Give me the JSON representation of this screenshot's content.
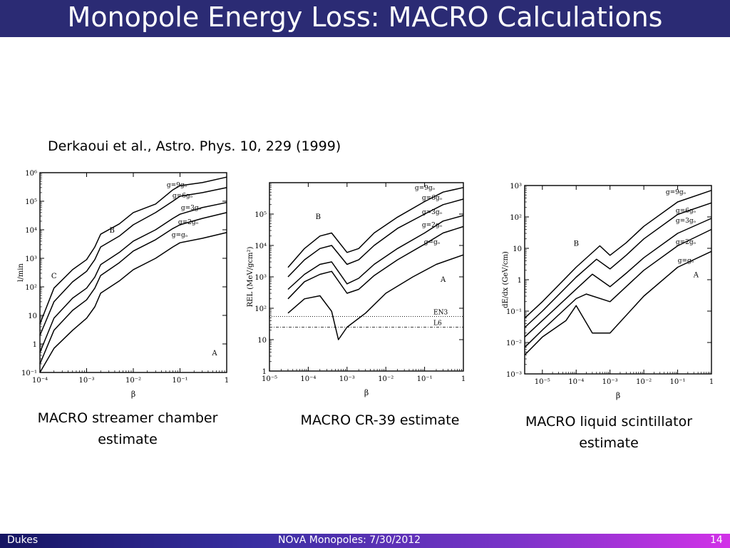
{
  "slide": {
    "title": "Monopole Energy Loss:  MACRO Calculations",
    "reference": "Derkaoui et al., Astro. Phys. 10, 229 (1999)"
  },
  "footer": {
    "left": "Dukes",
    "center": "NOvA Monopoles:  7/30/2012",
    "right": "14"
  },
  "captions": [
    "MACRO streamer chamber estimate",
    "MACRO CR-39 estimate",
    "MACRO liquid scintillator estimate"
  ],
  "colors": {
    "title_bar": "#2b2b74",
    "footer_start": "#151562",
    "footer_end": "#d232e8"
  },
  "chart_data": [
    {
      "type": "line",
      "xscale": "log",
      "yscale": "log",
      "xlim": [
        0.0001,
        1
      ],
      "ylim": [
        0.1,
        1000000
      ],
      "xlabel": "β",
      "ylabel": "l/min",
      "xticks": [
        "10⁻⁴",
        "10⁻³",
        "10⁻²",
        "10⁻¹",
        "1"
      ],
      "yticks": [
        "10⁻¹",
        "1",
        "10",
        "10²",
        "10³",
        "10⁴",
        "10⁵",
        "10⁶"
      ],
      "annotations": [
        "A",
        "B",
        "C"
      ],
      "series": [
        {
          "name": "g=9gₒ",
          "style": "solid",
          "x": [
            0.0001,
            0.0002,
            0.0005,
            0.001,
            0.0015,
            0.002,
            0.005,
            0.01,
            0.03,
            0.07,
            0.1,
            0.3,
            1
          ],
          "y": [
            5,
            90,
            400,
            900,
            2500,
            7000,
            16000,
            40000,
            80000,
            250000,
            350000,
            450000,
            700000
          ]
        },
        {
          "name": "g=6gₒ",
          "style": "solid",
          "x": [
            0.0001,
            0.0002,
            0.0005,
            0.001,
            0.0015,
            0.002,
            0.005,
            0.01,
            0.03,
            0.07,
            0.1,
            0.3,
            1
          ],
          "y": [
            2,
            30,
            150,
            350,
            900,
            2500,
            6000,
            15000,
            40000,
            100000,
            150000,
            200000,
            300000
          ]
        },
        {
          "name": "g=3gₒ",
          "style": "solid",
          "x": [
            0.0001,
            0.0002,
            0.0005,
            0.001,
            0.0015,
            0.002,
            0.005,
            0.01,
            0.03,
            0.07,
            0.1,
            0.3,
            1
          ],
          "y": [
            0.5,
            8,
            40,
            90,
            220,
            600,
            1600,
            4000,
            10000,
            25000,
            35000,
            60000,
            90000
          ]
        },
        {
          "name": "g=2gₒ",
          "style": "solid",
          "x": [
            0.0001,
            0.0002,
            0.0005,
            0.001,
            0.0015,
            0.002,
            0.005,
            0.01,
            0.03,
            0.07,
            0.1,
            0.3,
            1
          ],
          "y": [
            0.2,
            3,
            15,
            35,
            90,
            250,
            700,
            1800,
            4500,
            11000,
            15000,
            25000,
            40000
          ]
        },
        {
          "name": "g=gₒ",
          "style": "solid",
          "x": [
            0.0001,
            0.0002,
            0.0005,
            0.001,
            0.0015,
            0.002,
            0.005,
            0.01,
            0.03,
            0.07,
            0.1,
            0.3,
            1
          ],
          "y": [
            0.1,
            0.7,
            3,
            8,
            20,
            60,
            160,
            400,
            1000,
            2500,
            3500,
            5000,
            8000
          ]
        }
      ]
    },
    {
      "type": "line",
      "xscale": "log",
      "yscale": "log",
      "xlim": [
        1e-05,
        1
      ],
      "ylim": [
        1,
        1000000
      ],
      "xlabel": "β",
      "ylabel": "REL (MeV/gcm²)",
      "xticks": [
        "10⁻⁵",
        "10⁻⁴",
        "10⁻³",
        "10⁻²",
        "10⁻¹",
        "1"
      ],
      "yticks": [
        "1",
        "10",
        "10²",
        "10³",
        "10⁴",
        "10⁵"
      ],
      "annotations": [
        "A",
        "B"
      ],
      "thresholds": [
        {
          "label": "EN3",
          "y": 55
        },
        {
          "label": "L6",
          "y": 25
        }
      ],
      "series": [
        {
          "name": "g=9gₒ",
          "style": "solid",
          "x": [
            3e-05,
            8e-05,
            0.0002,
            0.0004,
            0.001,
            0.002,
            0.005,
            0.02,
            0.1,
            0.3,
            1
          ],
          "y": [
            2000,
            8000,
            20000,
            25000,
            6000,
            8000,
            25000,
            80000,
            250000,
            500000,
            700000
          ]
        },
        {
          "name": "g=6gₒ",
          "style": "solid",
          "x": [
            3e-05,
            8e-05,
            0.0002,
            0.0004,
            0.001,
            0.002,
            0.005,
            0.02,
            0.1,
            0.3,
            1
          ],
          "y": [
            1000,
            3500,
            8000,
            10000,
            2500,
            3500,
            10000,
            35000,
            100000,
            200000,
            300000
          ]
        },
        {
          "name": "g=3gₒ",
          "style": "solid",
          "x": [
            3e-05,
            8e-05,
            0.0002,
            0.0004,
            0.001,
            0.002,
            0.005,
            0.02,
            0.1,
            0.3,
            1
          ],
          "y": [
            400,
            1200,
            2500,
            3000,
            600,
            900,
            2500,
            8000,
            25000,
            60000,
            90000
          ]
        },
        {
          "name": "g=2gₒ",
          "style": "solid",
          "x": [
            3e-05,
            8e-05,
            0.0002,
            0.0004,
            0.001,
            0.002,
            0.005,
            0.02,
            0.1,
            0.3,
            1
          ],
          "y": [
            200,
            700,
            1200,
            1500,
            300,
            400,
            1100,
            3500,
            11000,
            25000,
            40000
          ]
        },
        {
          "name": "g=gₒ",
          "style": "solid",
          "x": [
            3e-05,
            8e-05,
            0.0002,
            0.0004,
            0.0006,
            0.001,
            0.003,
            0.01,
            0.05,
            0.2,
            1
          ],
          "y": [
            70,
            200,
            250,
            80,
            10,
            25,
            70,
            300,
            1000,
            2500,
            5000
          ]
        }
      ]
    },
    {
      "type": "line",
      "xscale": "log",
      "yscale": "log",
      "xlim": [
        3e-06,
        1
      ],
      "ylim": [
        0.001,
        1000
      ],
      "xlabel": "β",
      "ylabel": "dE/dx (GeV/cm)",
      "xticks": [
        "10⁻⁵",
        "10⁻⁴",
        "10⁻³",
        "10⁻²",
        "10⁻¹",
        "1"
      ],
      "yticks": [
        "10⁻³",
        "10⁻²",
        "10⁻¹",
        "1",
        "10",
        "10²",
        "10³"
      ],
      "annotations": [
        "A",
        "B"
      ],
      "series": [
        {
          "name": "g=9gₒ",
          "style": "solid",
          "x": [
            3e-06,
            1e-05,
            0.0001,
            0.0005,
            0.001,
            0.003,
            0.01,
            0.1,
            1
          ],
          "y": [
            0.06,
            0.2,
            2.5,
            12,
            6,
            15,
            50,
            300,
            700
          ]
        },
        {
          "name": "g=6gₒ",
          "style": "solid",
          "x": [
            3e-06,
            1e-05,
            0.0001,
            0.0004,
            0.001,
            0.003,
            0.01,
            0.1,
            1
          ],
          "y": [
            0.03,
            0.1,
            1.2,
            4.5,
            2.2,
            6,
            20,
            120,
            280
          ]
        },
        {
          "name": "g=3gₒ",
          "style": "solid",
          "x": [
            3e-06,
            1e-05,
            0.0001,
            0.0003,
            0.001,
            0.003,
            0.01,
            0.1,
            1
          ],
          "y": [
            0.015,
            0.05,
            0.5,
            1.5,
            0.6,
            1.6,
            5,
            30,
            90
          ]
        },
        {
          "name": "g=2gₒ",
          "style": "solid",
          "x": [
            3e-06,
            1e-05,
            0.0001,
            0.0002,
            0.001,
            0.003,
            0.01,
            0.1,
            1
          ],
          "y": [
            0.007,
            0.025,
            0.25,
            0.35,
            0.2,
            0.6,
            2,
            12,
            40
          ]
        },
        {
          "name": "g=gₒ",
          "style": "solid",
          "x": [
            3e-06,
            1e-05,
            5e-05,
            0.0001,
            0.0003,
            0.001,
            0.01,
            0.1,
            1
          ],
          "y": [
            0.004,
            0.015,
            0.05,
            0.15,
            0.02,
            0.02,
            0.3,
            2.5,
            8
          ]
        }
      ]
    }
  ]
}
